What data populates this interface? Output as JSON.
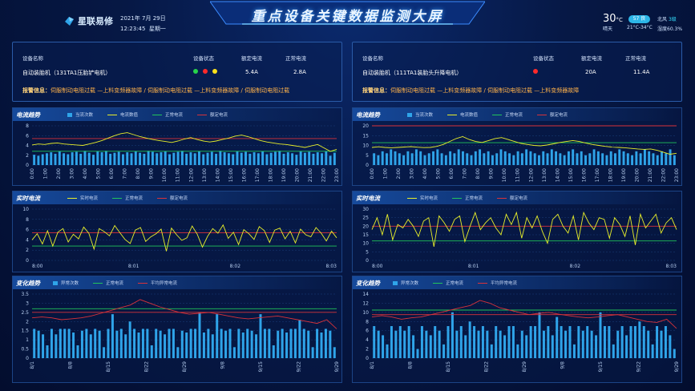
{
  "header": {
    "title": "重点设备关键数据监测大屏",
    "logo_text": "星联易修",
    "date": "2021年 7月 29日",
    "time": "12:23:45",
    "weekday": "星期一"
  },
  "weather": {
    "temp": "30",
    "unit": "°C",
    "condition": "晴天",
    "aqi": "57 良",
    "range": "21°C-34°C",
    "wind_dir": "北风",
    "wind_level": "3级",
    "humidity": "湿度60.3%"
  },
  "colors": {
    "bar": "#2fa4e9",
    "yellow": "#e9ef2a",
    "green": "#21c45a",
    "red": "#d8323a"
  },
  "columns": [
    {
      "info": {
        "h_name": "设备名称",
        "h_status": "设备状态",
        "h_rated": "额定电流",
        "h_normal": "正常电流",
        "name": "自动装胎机（131TA1压胎铲电机）",
        "status_lights": [
          "green",
          "red",
          "yellow"
        ],
        "rated": "5.4A",
        "normal": "2.8A",
        "alarm_label": "报警信息：",
        "alarm_text": "伺服制动电阻过载 —上料变频器故障 / 伺服制动电阻过载 —上料变频器故障 / 伺服制动电阻过载"
      },
      "trend": {
        "title": "电流趋势",
        "legend": [
          "当流次数",
          "电流数值",
          "正常电流",
          "额定电流"
        ],
        "chart_data": {
          "type": "bar+line",
          "x": [
            "0:00",
            "1:00",
            "2:00",
            "3:00",
            "4:00",
            "5:00",
            "6:00",
            "7:00",
            "8:00",
            "9:00",
            "10:00",
            "11:00",
            "12:00",
            "13:00",
            "14:00",
            "15:00",
            "16:00",
            "17:00",
            "18:00",
            "19:00",
            "20:00",
            "21:00",
            "22:00",
            "23:00"
          ],
          "ylim": [
            0,
            8
          ],
          "yticks": [
            0,
            2,
            4,
            6,
            8
          ],
          "bars": [
            2.1,
            1.9,
            2.2,
            2.4,
            2.6,
            2.3,
            2.8,
            2.4,
            2.2,
            2.6,
            2.7,
            2.3,
            2.9,
            2.5,
            2.1,
            2.8,
            2.6,
            2.9,
            2.3,
            2.5,
            2.7,
            2.2,
            2.6,
            2.4,
            2.8,
            2.5,
            2.3,
            2.9,
            2.7,
            2.4,
            2.6,
            2.8,
            2.2,
            2.5,
            2.7,
            2.9,
            2.3,
            2.6,
            2.4,
            2.8,
            2.2,
            2.5,
            2.7,
            2.3,
            2.9,
            2.6,
            2.4,
            2.2,
            2.8,
            2.5,
            2.7,
            2.3,
            2.6,
            2.4,
            2.8,
            2.2,
            2.5,
            2.7,
            2.9,
            2.3,
            2.6,
            2.4,
            2.1,
            2.8,
            2.5,
            2.7,
            2.3,
            2.6,
            2.4,
            2.8,
            1.9,
            2.5
          ],
          "line": [
            4.1,
            4.3,
            4.2,
            4.4,
            4.5,
            4.3,
            4.2,
            4.1,
            4.0,
            4.3,
            4.6,
            5.0,
            5.5,
            6.0,
            6.4,
            6.6,
            6.2,
            5.8,
            5.5,
            5.2,
            5.0,
            4.8,
            4.6,
            4.9,
            5.3,
            5.6,
            5.2,
            4.9,
            4.7,
            4.9,
            5.2,
            5.5,
            5.9,
            6.1,
            5.8,
            5.4,
            5.0,
            4.7,
            4.5,
            4.3,
            4.2,
            4.0,
            3.8,
            3.6,
            3.9,
            4.2,
            3.5,
            2.8,
            3.2
          ],
          "normal": 2.8,
          "rated": 5.4
        }
      },
      "realtime": {
        "title": "实时电流",
        "legend": [
          "实时电流",
          "正常电流",
          "额定电流"
        ],
        "chart_data": {
          "type": "line",
          "x": [
            "8:00",
            "8:01",
            "8:02",
            "8:03"
          ],
          "ylim": [
            0,
            10
          ],
          "yticks": [
            0,
            2,
            4,
            6,
            8,
            10
          ],
          "line": [
            4,
            5.2,
            3.2,
            5.8,
            2.8,
            5.5,
            6.2,
            3.6,
            5.1,
            4.2,
            6.5,
            5.3,
            2.2,
            6.2,
            5.6,
            4.8,
            6.8,
            5.4,
            4.1,
            3.3,
            5.9,
            6.4,
            3.7,
            4.6,
            5.2,
            6.1,
            1.8,
            6.3,
            5.0,
            3.9,
            4.4,
            6.7,
            5.1,
            2.6,
            4.7,
            6.2,
            5.3,
            6.9,
            4.3,
            5.5,
            3.1,
            6.0,
            5.2,
            4.1,
            6.6,
            5.8,
            3.5,
            5.9,
            6.3,
            4.2,
            5.7,
            3.4,
            6.1,
            5.0,
            4.6,
            6.4,
            5.3,
            3.8,
            5.7,
            4.4
          ],
          "normal": 2.8,
          "rated": 5.4
        }
      },
      "change": {
        "title": "变化趋势",
        "legend": [
          "异常次数",
          "正常电流",
          "平均异常电流"
        ],
        "chart_data": {
          "type": "bar+line",
          "x": [
            "8/1",
            "8/8",
            "8/15",
            "8/22",
            "8/29",
            "9/8",
            "9/15",
            "9/22",
            "9/29"
          ],
          "ylim": [
            0,
            3.5
          ],
          "yticks": [
            0,
            0.5,
            1,
            1.5,
            2,
            2.5,
            3,
            3.5
          ],
          "bars": [
            1.6,
            1.5,
            1.3,
            0.7,
            1.6,
            1.3,
            1.6,
            1.6,
            1.6,
            1.4,
            0.7,
            1.5,
            1.6,
            1.3,
            1.6,
            1.5,
            0.6,
            1.6,
            2.4,
            1.5,
            1.6,
            1.3,
            2.0,
            1.6,
            1.4,
            1.6,
            1.6,
            0.7,
            1.6,
            1.5,
            1.3,
            1.6,
            1.6,
            0.6,
            1.5,
            1.4,
            1.6,
            1.6,
            2.5,
            1.4,
            1.6,
            1.3,
            2.4,
            1.6,
            1.5,
            1.6,
            0.6,
            1.6,
            1.4,
            1.6,
            1.5,
            1.3,
            2.4,
            1.6,
            1.6,
            0.7,
            1.5,
            1.6,
            1.4,
            1.6,
            1.6,
            2.1,
            1.6,
            1.5,
            0.6,
            1.6,
            1.4,
            1.6,
            1.5,
            0.6
          ],
          "line": [
            2.2,
            2.25,
            2.2,
            2.1,
            2.15,
            2.2,
            2.3,
            2.45,
            2.6,
            2.75,
            2.9,
            3.2,
            3.0,
            2.8,
            2.65,
            2.5,
            2.4,
            2.45,
            2.5,
            2.4,
            2.3,
            2.2,
            2.15,
            2.2,
            2.25,
            2.3,
            2.2,
            2.1,
            2.0,
            1.9,
            2.1,
            1.6
          ],
          "normal": 2.7,
          "rated": 2.5
        }
      }
    },
    {
      "info": {
        "h_name": "设备名称",
        "h_status": "设备状态",
        "h_rated": "额定电流",
        "h_normal": "正常电流",
        "name": "自动装胎机（111TA1装胎头升降电机）",
        "status_lights": [
          "red"
        ],
        "rated": "20A",
        "normal": "11.4A",
        "alarm_label": "报警信息：",
        "alarm_text": "伺服制动电阻过载 —上料变频器故障 / 伺服制动电阻过载 —上料变频器故障"
      },
      "trend": {
        "title": "电流趋势",
        "legend": [
          "当流次数",
          "电流数值",
          "正常电流",
          "额定电流"
        ],
        "chart_data": {
          "type": "bar+line",
          "x": [
            "0:00",
            "1:00",
            "2:00",
            "3:00",
            "4:00",
            "5:00",
            "6:00",
            "7:00",
            "8:00",
            "9:00",
            "10:00",
            "11:00",
            "12:00",
            "13:00",
            "14:00",
            "15:00",
            "16:00",
            "17:00",
            "18:00",
            "19:00",
            "20:00",
            "21:00",
            "22:00",
            "23:00"
          ],
          "ylim": [
            0,
            20
          ],
          "yticks": [
            0,
            5,
            10,
            15,
            20
          ],
          "bars": [
            6,
            5,
            7,
            6,
            8,
            7,
            6,
            5,
            7,
            6,
            8,
            7,
            5,
            6,
            7,
            8,
            6,
            5,
            7,
            6,
            8,
            7,
            6,
            5,
            7,
            8,
            6,
            7,
            5,
            6,
            8,
            7,
            6,
            5,
            7,
            6,
            8,
            7,
            6,
            5,
            7,
            6,
            8,
            7,
            6,
            5,
            7,
            8,
            6,
            7,
            5,
            6,
            8,
            7,
            6,
            5,
            7,
            6,
            8,
            7,
            6,
            5,
            7,
            6,
            8,
            7,
            6,
            5,
            7,
            6,
            8,
            5
          ],
          "line": [
            9,
            9.3,
            9,
            8.8,
            9,
            9.2,
            9.4,
            9.1,
            8.9,
            9.0,
            9.5,
            10.5,
            12,
            13.5,
            14.5,
            13,
            12,
            11.5,
            12.5,
            13.5,
            14,
            13,
            12,
            11,
            10.5,
            10,
            9.8,
            10.2,
            10.8,
            11.5,
            12,
            12.5,
            12,
            11.2,
            10.5,
            10,
            9.5,
            9.2,
            9,
            8.8,
            8.5,
            8.2,
            8.0,
            8.2,
            7.5,
            6.5,
            5.5,
            6.0
          ],
          "normal": 11.4,
          "rated": 20
        }
      },
      "realtime": {
        "title": "实时电流",
        "legend": [
          "实时电流",
          "正常电流",
          "额定电流"
        ],
        "chart_data": {
          "type": "line",
          "x": [
            "8:00",
            "8:01",
            "8:02",
            "8:03"
          ],
          "ylim": [
            0,
            30
          ],
          "yticks": [
            0,
            5,
            10,
            15,
            20,
            25,
            30
          ],
          "line": [
            18,
            25,
            15,
            27,
            12,
            21,
            19,
            24,
            20,
            14,
            23,
            25,
            8,
            26,
            22,
            17,
            24,
            26,
            11,
            20,
            28,
            18,
            22,
            25,
            19,
            15,
            27,
            21,
            28,
            13,
            25,
            19,
            26,
            17,
            10,
            24,
            27,
            20,
            16,
            26,
            12,
            28,
            22,
            18,
            25,
            24,
            13,
            25,
            21,
            14,
            26,
            9,
            27,
            19,
            23,
            27,
            16,
            22,
            25,
            18
          ],
          "normal": 11.4,
          "rated": 20
        }
      },
      "change": {
        "title": "变化趋势",
        "legend": [
          "异常次数",
          "正常电流",
          "平均异常电流"
        ],
        "chart_data": {
          "type": "bar+line",
          "x": [
            "8/1",
            "8/8",
            "8/15",
            "8/22",
            "8/29",
            "9/8",
            "9/15",
            "9/22",
            "9/29"
          ],
          "ylim": [
            0,
            14
          ],
          "yticks": [
            0,
            2,
            4,
            6,
            8,
            10,
            12,
            14
          ],
          "bars": [
            7,
            6,
            5,
            3,
            7,
            6,
            7,
            6,
            7,
            5,
            2,
            7,
            6,
            5,
            7,
            6,
            3,
            7,
            10,
            6,
            7,
            5,
            8,
            7,
            6,
            7,
            6,
            3,
            7,
            6,
            5,
            7,
            7,
            3,
            6,
            5,
            7,
            7,
            10,
            6,
            7,
            5,
            9,
            7,
            6,
            7,
            3,
            7,
            6,
            7,
            6,
            5,
            10,
            7,
            7,
            3,
            6,
            7,
            5,
            7,
            7,
            8,
            7,
            6,
            3,
            7,
            6,
            7,
            5,
            2
          ],
          "line": [
            9,
            9.3,
            9,
            8.5,
            8.8,
            9,
            9.5,
            10,
            10.5,
            11,
            11.5,
            12.6,
            12,
            11,
            10.5,
            10,
            9.5,
            9.8,
            10,
            9.6,
            9.3,
            9.0,
            8.8,
            9.0,
            9.3,
            9.5,
            9.0,
            8.5,
            8.0,
            7.8,
            8.5,
            6.5
          ],
          "normal": 10.5,
          "rated": 9.5
        }
      }
    }
  ]
}
